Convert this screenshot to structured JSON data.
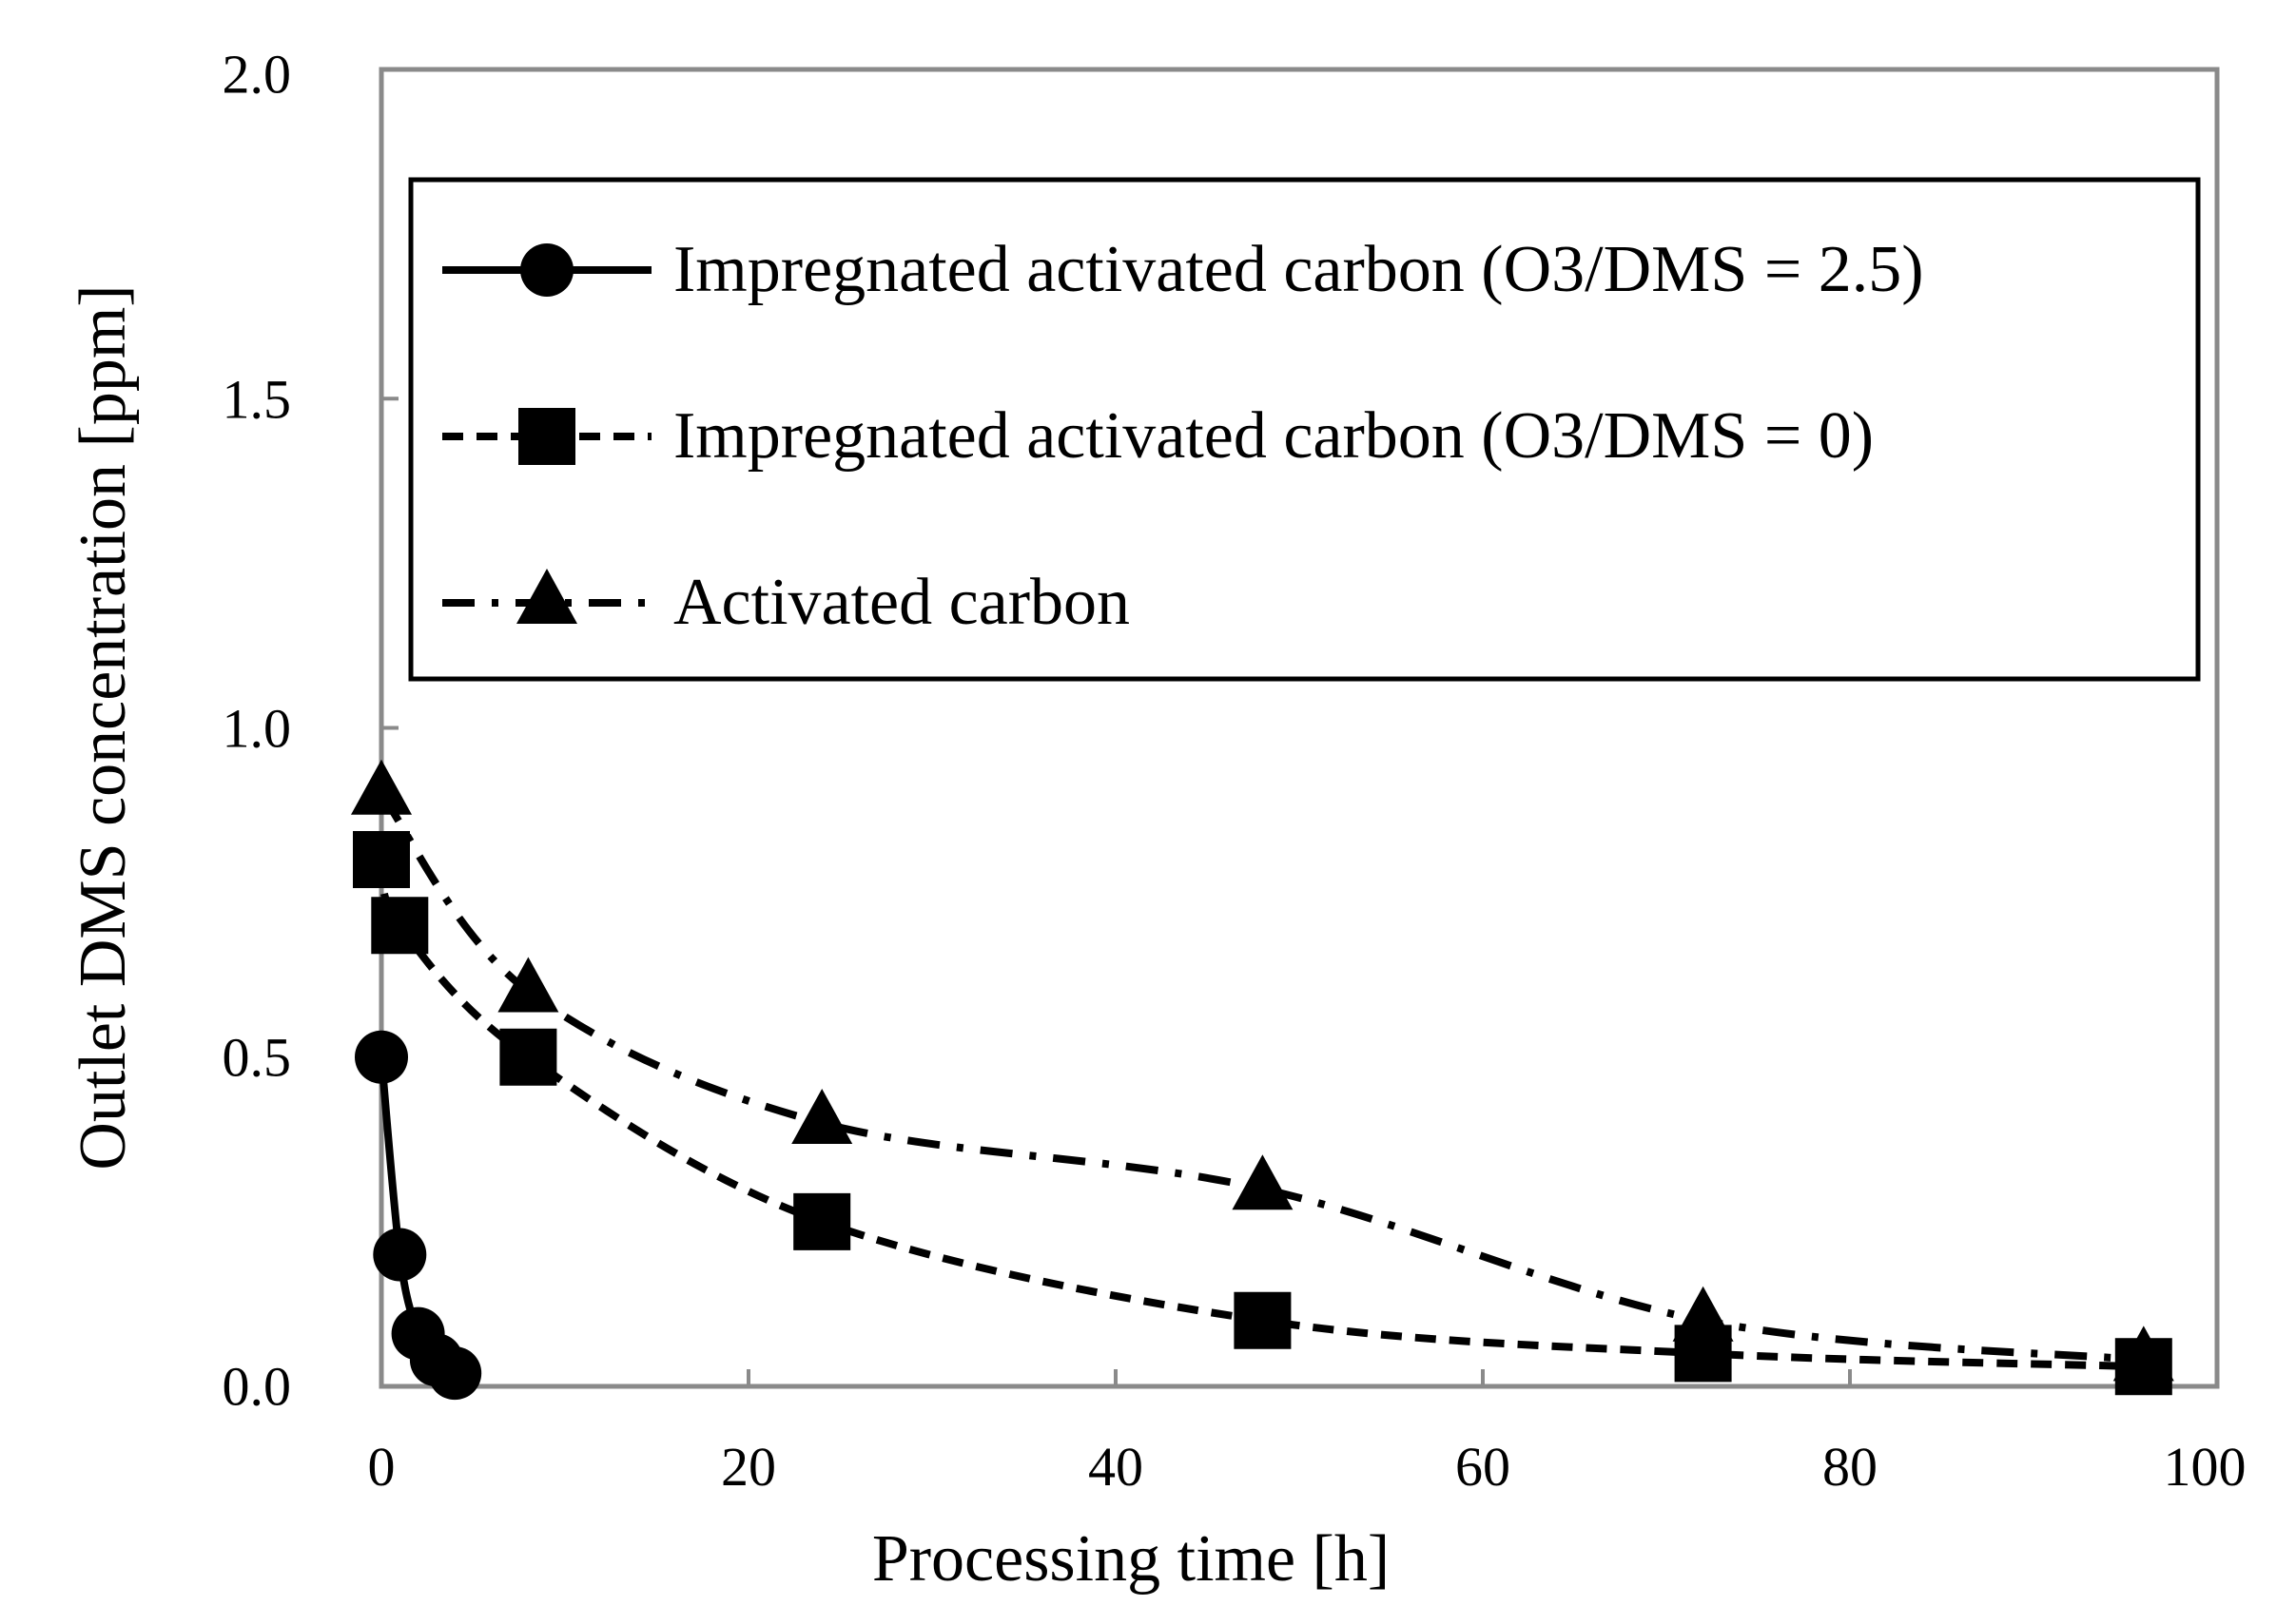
{
  "chart_data": {
    "type": "line",
    "title": "",
    "xlabel": "Processing time [h]",
    "ylabel": "Outlet DMS concentration [ppm]",
    "xlim": [
      0,
      100
    ],
    "ylim": [
      0.0,
      2.0
    ],
    "x_ticks": [
      0,
      20,
      40,
      60,
      80,
      100
    ],
    "x_tick_labels": [
      "0",
      "20",
      "40",
      "60",
      "80",
      "100"
    ],
    "y_ticks": [
      0.0,
      0.5,
      1.0,
      1.5,
      2.0
    ],
    "y_tick_labels": [
      "0.0",
      "0.5",
      "1.0",
      "1.5",
      "2.0"
    ],
    "grid": false,
    "legend_position": "top-right",
    "series": [
      {
        "name": "Impregnated activated carbon (O3/DMS = 2.5)",
        "marker": "circle",
        "line_style": "solid",
        "x": [
          0,
          1,
          2,
          3,
          4
        ],
        "values": [
          0.5,
          0.2,
          0.08,
          0.04,
          0.02
        ]
      },
      {
        "name": "Impregnated activated carbon (O3/DMS = 0)",
        "marker": "square",
        "line_style": "dashed",
        "x": [
          0,
          1,
          8,
          24,
          48,
          72,
          96
        ],
        "values": [
          0.8,
          0.7,
          0.5,
          0.25,
          0.1,
          0.05,
          0.03
        ]
      },
      {
        "name": "Activated carbon",
        "marker": "triangle",
        "line_style": "dash-dot",
        "x": [
          0,
          8,
          24,
          48,
          72,
          96
        ],
        "values": [
          0.9,
          0.6,
          0.4,
          0.3,
          0.1,
          0.04
        ]
      }
    ]
  }
}
